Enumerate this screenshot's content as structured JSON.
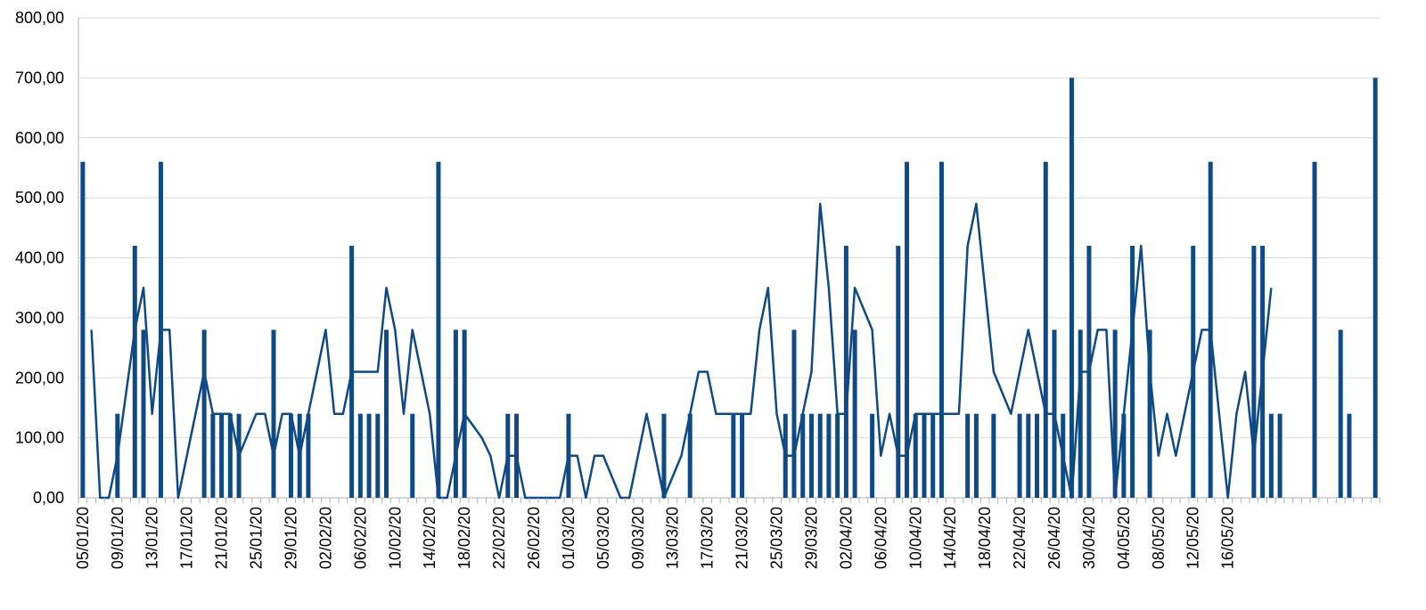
{
  "chart_data": {
    "type": "bar",
    "combo_overlay": "line",
    "title": "",
    "xlabel": "",
    "ylabel": "",
    "ylim": [
      0,
      800
    ],
    "y_ticks": [
      "0,00",
      "100,00",
      "200,00",
      "300,00",
      "400,00",
      "500,00",
      "600,00",
      "700,00",
      "800,00"
    ],
    "y_tick_values": [
      0,
      100,
      200,
      300,
      400,
      500,
      600,
      700,
      800
    ],
    "x_tick_labels": [
      "05/01/20",
      "09/01/20",
      "13/01/20",
      "17/01/20",
      "21/01/20",
      "25/01/20",
      "29/01/20",
      "02/02/20",
      "06/02/20",
      "10/02/20",
      "14/02/20",
      "18/02/20",
      "22/02/20",
      "26/02/20",
      "01/03/20",
      "05/03/20",
      "09/03/20",
      "13/03/20",
      "17/03/20",
      "21/03/20",
      "25/03/20",
      "29/03/20",
      "02/04/20",
      "06/04/20",
      "10/04/20",
      "14/04/20",
      "18/04/20",
      "22/04/20",
      "26/04/20",
      "30/04/20",
      "04/05/20",
      "08/05/20",
      "12/05/20",
      "16/05/20"
    ],
    "grid": true,
    "legend": "none",
    "colors": {
      "series": "#0f4a85",
      "grid": "#d9d9d9",
      "axis": "#b3b3b3"
    },
    "start_date": "2020-01-05",
    "series": [
      {
        "type": "bar",
        "values": [
          560,
          0,
          0,
          0,
          140,
          0,
          420,
          280,
          0,
          560,
          0,
          0,
          0,
          0,
          280,
          140,
          140,
          140,
          140,
          0,
          0,
          0,
          280,
          0,
          140,
          140,
          140,
          0,
          0,
          0,
          0,
          420,
          140,
          140,
          140,
          280,
          0,
          0,
          140,
          0,
          0,
          560,
          0,
          280,
          280,
          0,
          0,
          0,
          0,
          140,
          140,
          0,
          0,
          0,
          0,
          0,
          140,
          0,
          0,
          0,
          0,
          0,
          0,
          0,
          0,
          0,
          0,
          140,
          0,
          0,
          140,
          0,
          0,
          0,
          0,
          140,
          140,
          0,
          0,
          0,
          0,
          140,
          280,
          140,
          140,
          140,
          140,
          140,
          420,
          280,
          0,
          140,
          0,
          0,
          420,
          560,
          140,
          140,
          140,
          560,
          0,
          0,
          140,
          140,
          0,
          140,
          0,
          0,
          140,
          140,
          140,
          560,
          280,
          140,
          700,
          280,
          420,
          0,
          0,
          280,
          140,
          420,
          0,
          280,
          0,
          0,
          0,
          0,
          420,
          0,
          560,
          0,
          0,
          0,
          0,
          420,
          420,
          140,
          140,
          0,
          0,
          0,
          560,
          0,
          0,
          280,
          140,
          0,
          0,
          700
        ]
      },
      {
        "type": "line",
        "values": [
          null,
          280,
          0,
          0,
          70,
          175,
          280,
          350,
          140,
          280,
          280,
          0,
          70,
          140,
          210,
          140,
          140,
          140,
          70,
          105,
          140,
          140,
          70,
          140,
          140,
          70,
          140,
          210,
          280,
          140,
          140,
          210,
          210,
          210,
          210,
          350,
          280,
          140,
          280,
          210,
          140,
          0,
          0,
          70,
          140,
          120,
          100,
          70,
          0,
          70,
          70,
          0,
          0,
          0,
          0,
          0,
          70,
          70,
          0,
          70,
          70,
          35,
          0,
          0,
          70,
          140,
          70,
          0,
          35,
          70,
          140,
          210,
          210,
          140,
          140,
          140,
          140,
          140,
          280,
          350,
          140,
          70,
          70,
          140,
          210,
          490,
          350,
          140,
          140,
          350,
          315,
          280,
          70,
          140,
          70,
          70,
          140,
          140,
          140,
          140,
          140,
          140,
          420,
          490,
          350,
          210,
          175,
          140,
          210,
          280,
          210,
          140,
          140,
          70,
          0,
          210,
          210,
          280,
          280,
          0,
          140,
          280,
          420,
          210,
          70,
          140,
          70,
          140,
          210,
          280,
          280,
          140,
          0,
          140,
          210,
          70,
          210,
          350
        ]
      }
    ]
  }
}
